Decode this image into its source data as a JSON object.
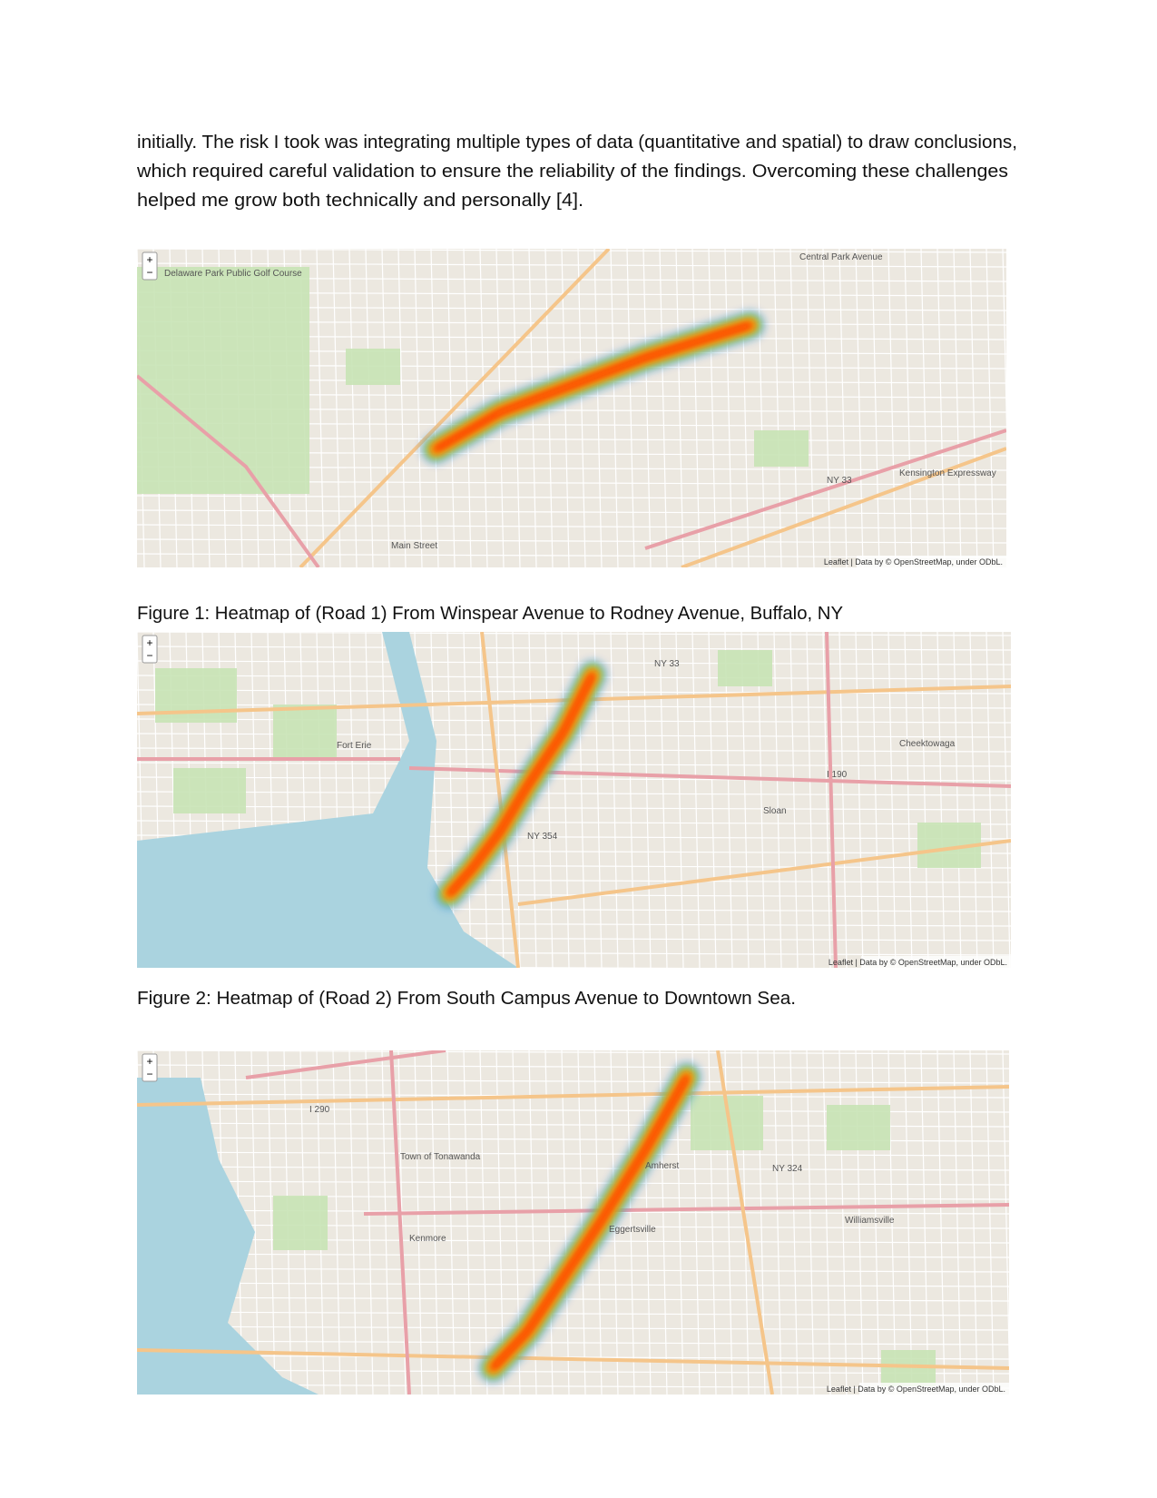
{
  "paragraph": [
    "initially. The risk I took was integrating multiple types of data (quantitative and spatial) to draw conclusions,",
    "which required careful validation to ensure the reliability of the findings. Overcoming these challenges",
    "helped me grow both technically and personally [4]."
  ],
  "map_controls": {
    "zoom_in": "+",
    "zoom_out": "−"
  },
  "figures": [
    {
      "caption": "Figure 1: Heatmap of (Road 1) From Winspear Avenue to Rodney Avenue, Buffalo, NY",
      "labels": [
        "Central Park Avenue",
        "Main Street",
        "Kensington Expressway",
        "NY 33",
        "Delaware Park Public Golf Course"
      ],
      "attribution": "Leaflet | Data by © OpenStreetMap, under ODbL."
    },
    {
      "caption": "Figure 2: Heatmap of (Road 2) From South Campus Avenue to Downtown Sea.",
      "labels": [
        "Fort Erie",
        "Cheektowaga",
        "NY 33",
        "NY 354",
        "I 190",
        "Sloan"
      ],
      "attribution": "Leaflet | Data by © OpenStreetMap, under ODbL."
    },
    {
      "labels": [
        "Town of Tonawanda",
        "Kenmore",
        "Eggertsville",
        "Williamsville",
        "Amherst",
        "NY 324",
        "I 290"
      ],
      "attribution": "Leaflet | Data by © OpenStreetMap, under ODbL."
    }
  ]
}
